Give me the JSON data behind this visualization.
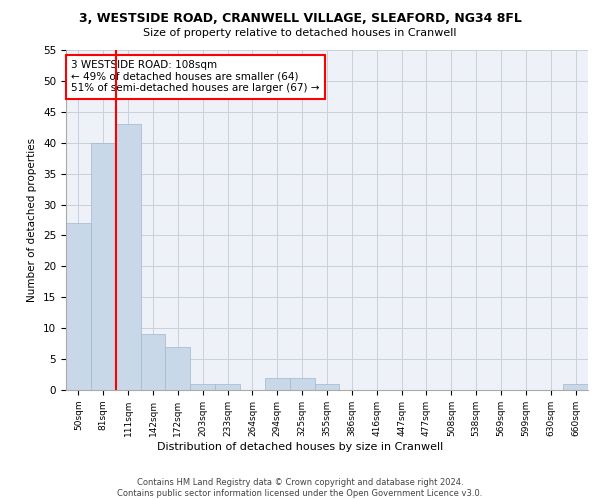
{
  "title_line1": "3, WESTSIDE ROAD, CRANWELL VILLAGE, SLEAFORD, NG34 8FL",
  "title_line2": "Size of property relative to detached houses in Cranwell",
  "xlabel": "Distribution of detached houses by size in Cranwell",
  "ylabel": "Number of detached properties",
  "footnote": "Contains HM Land Registry data © Crown copyright and database right 2024.\nContains public sector information licensed under the Open Government Licence v3.0.",
  "categories": [
    "50sqm",
    "81sqm",
    "111sqm",
    "142sqm",
    "172sqm",
    "203sqm",
    "233sqm",
    "264sqm",
    "294sqm",
    "325sqm",
    "355sqm",
    "386sqm",
    "416sqm",
    "447sqm",
    "477sqm",
    "508sqm",
    "538sqm",
    "569sqm",
    "599sqm",
    "630sqm",
    "660sqm"
  ],
  "values": [
    27,
    40,
    43,
    9,
    7,
    1,
    1,
    0,
    2,
    2,
    1,
    0,
    0,
    0,
    0,
    0,
    0,
    0,
    0,
    0,
    1
  ],
  "bar_color": "#c8d8e8",
  "bar_edge_color": "#a0b8cc",
  "grid_color": "#c8d0dc",
  "bg_color": "#eef2f8",
  "annotation_text": "3 WESTSIDE ROAD: 108sqm\n← 49% of detached houses are smaller (64)\n51% of semi-detached houses are larger (67) →",
  "vline_x": 1.5,
  "vline_color": "red",
  "annotation_box_color": "red",
  "ylim": [
    0,
    55
  ],
  "yticks": [
    0,
    5,
    10,
    15,
    20,
    25,
    30,
    35,
    40,
    45,
    50,
    55
  ]
}
